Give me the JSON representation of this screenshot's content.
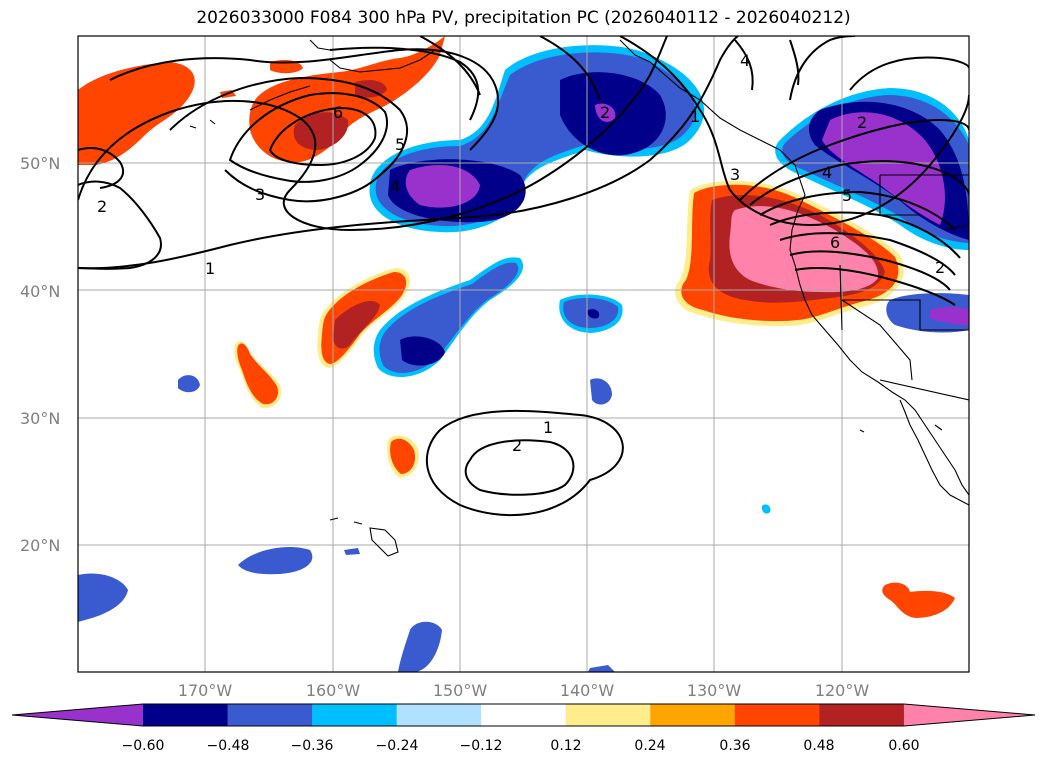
{
  "title": "2026033000 F084 300 hPa PV, precipitation PC (2026040112 - 2026040212)",
  "lat_ticks": [
    "50°N",
    "40°N",
    "30°N",
    "20°N"
  ],
  "lon_ticks": [
    "170°W",
    "160°W",
    "150°W",
    "140°W",
    "130°W",
    "120°W"
  ],
  "colorbar": {
    "ticks": [
      "−0.60",
      "−0.48",
      "−0.36",
      "−0.24",
      "−0.12",
      "0.12",
      "0.24",
      "0.36",
      "0.48",
      "0.60"
    ],
    "colors": [
      "#9932cc",
      "#00008b",
      "#3a5bcf",
      "#00bfff",
      "#b0e2ff",
      "#ffffff",
      "#ffec8b",
      "#ffa500",
      "#ff4500",
      "#b22222",
      "#ff82ab"
    ]
  },
  "contour_labels": [
    "1",
    "2",
    "3",
    "4",
    "5",
    "6",
    "2",
    "1",
    "2",
    "6",
    "5",
    "4",
    "3",
    "2",
    "4",
    "2",
    "1"
  ],
  "map_extent": {
    "lon_min": -180,
    "lon_max": -110,
    "lat_min": 10,
    "lat_max": 60
  }
}
